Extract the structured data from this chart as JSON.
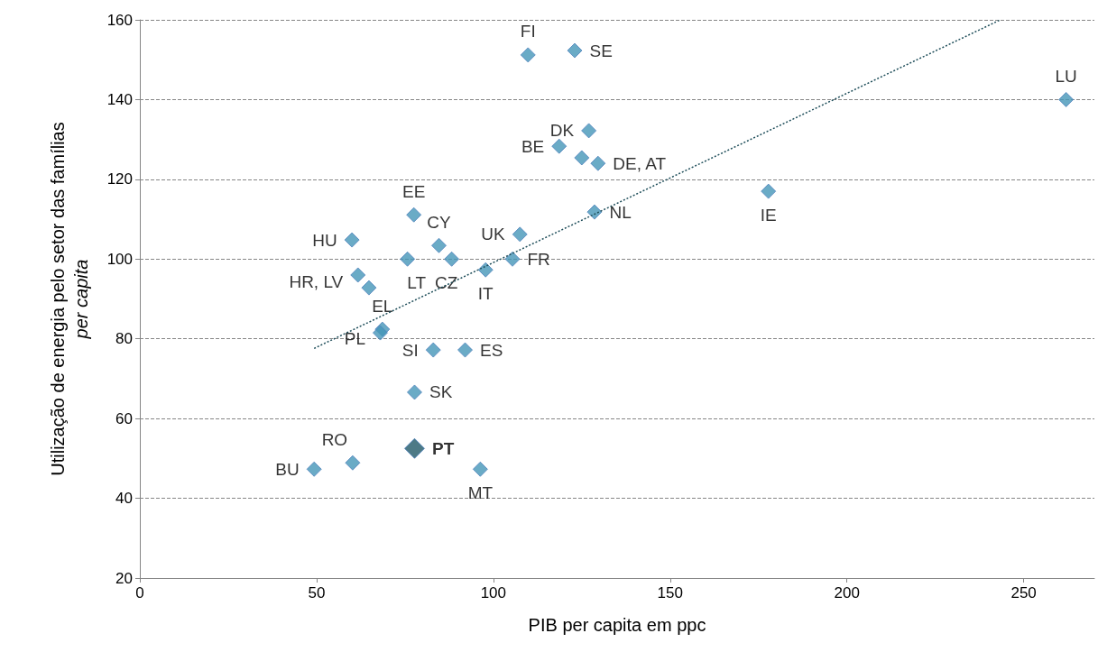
{
  "chart_data": {
    "type": "scatter",
    "xlabel": "PIB per capita em ppc",
    "ylabel": "Utilização de energia pelo setor das famílias per capita",
    "xlim": [
      0,
      270
    ],
    "xticks": [
      0,
      50,
      100,
      150,
      200,
      250
    ],
    "ylim": [
      20,
      160
    ],
    "yticks": [
      20,
      40,
      60,
      80,
      100,
      120,
      140,
      160
    ],
    "grid": "y",
    "legend": false,
    "marker": "diamond",
    "series": [
      {
        "color": "#4596b8",
        "x": [
          109.8,
          123,
          262,
          127,
          118.6,
          125,
          129.6,
          177.8,
          77.5,
          128.6,
          107.5,
          60,
          84.6,
          75.7,
          88.2,
          105.4,
          97.8,
          61.7,
          64.8,
          68.6,
          68,
          83,
          92,
          77.7,
          60.2,
          49.3,
          96.3
        ],
        "values": [
          151.2,
          152.3,
          140,
          132.2,
          128.3,
          125.4,
          124,
          117,
          111.1,
          111.8,
          106.2,
          104.8,
          103.4,
          100,
          100,
          100,
          97.3,
          96,
          92.8,
          82.4,
          81.5,
          77.2,
          77.2,
          66.6,
          48.9,
          47.3,
          47.3
        ],
        "value_labels": [
          "FI",
          "SE",
          "LU",
          "DK",
          "BE",
          null,
          "DE, AT",
          "IE",
          "EE",
          "NL",
          "UK",
          "HU",
          "CY",
          "LT",
          "CZ",
          "FR",
          "IT",
          "HR, LV",
          null,
          "EL",
          "PL",
          "SI",
          "ES",
          "SK",
          "RO",
          "BU",
          "MT"
        ]
      },
      {
        "name": "PT",
        "color": "#215968",
        "x": [
          77.7
        ],
        "values": [
          52.5
        ]
      },
      {
        "type": "line",
        "color": "#1f4e5a",
        "line_style": "dotted",
        "marker": "none",
        "x": [
          49.3,
          243.4
        ],
        "values": [
          77.6,
          160
        ]
      }
    ]
  }
}
